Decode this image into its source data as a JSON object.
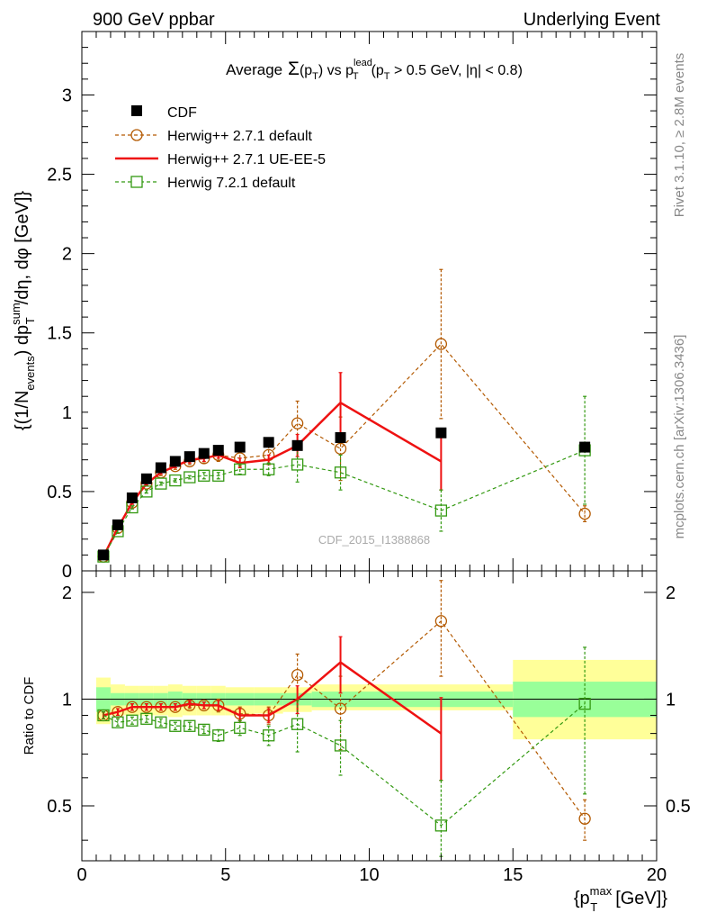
{
  "header": {
    "left": "900 GeV ppbar",
    "right": "Underlying Event"
  },
  "side_labels": {
    "rivet": "Rivet 3.1.10, ≥ 2.8M events",
    "mcplots": "mcplots.cern.ch [arXiv:1306.3436]"
  },
  "colors": {
    "cdf": "#000000",
    "herwigpp_default": "#b35900",
    "herwigpp_ueee5": "#ee1111",
    "herwig721": "#339911",
    "band_inner": "#99ff99",
    "band_outer": "#ffff99"
  },
  "chart_data": [
    {
      "type": "line",
      "title": "Average Σ(p_T) vs p_T^lead (p_T > 0.5 GeV, |η| < 0.8)",
      "xlabel": "{p_T^max [GeV]}",
      "ylabel": "{(1/N_events) dp_T^sum/dη, dφ [GeV]}",
      "xlim": [
        0,
        20
      ],
      "ylim": [
        0,
        3.4
      ],
      "yticks": [
        "0",
        "0.5",
        "1",
        "1.5",
        "2",
        "2.5",
        "3"
      ],
      "xticks": [
        "0",
        "5",
        "10",
        "15",
        "20"
      ],
      "watermark": "CDF_2015_I1388868",
      "legend_position": "top-left",
      "series": [
        {
          "name": "CDF",
          "style": "markers",
          "x": [
            0.75,
            1.25,
            1.75,
            2.25,
            2.75,
            3.25,
            3.75,
            4.25,
            4.75,
            5.5,
            6.5,
            7.5,
            9.0,
            12.5,
            17.5
          ],
          "y": [
            0.1,
            0.29,
            0.46,
            0.58,
            0.65,
            0.69,
            0.72,
            0.74,
            0.76,
            0.78,
            0.81,
            0.79,
            0.84,
            0.87,
            0.78
          ],
          "err": [
            0.01,
            0.01,
            0.01,
            0.01,
            0.01,
            0.01,
            0.01,
            0.01,
            0.01,
            0.01,
            0.02,
            0.02,
            0.03,
            0.04,
            0.06
          ]
        },
        {
          "name": "Herwig++ 2.7.1 default",
          "style": "circle-dashed",
          "x": [
            0.75,
            1.25,
            1.75,
            2.25,
            2.75,
            3.25,
            3.75,
            4.25,
            4.75,
            5.5,
            6.5,
            7.5,
            9.0,
            12.5,
            17.5
          ],
          "y": [
            0.09,
            0.27,
            0.43,
            0.55,
            0.62,
            0.66,
            0.69,
            0.71,
            0.73,
            0.71,
            0.73,
            0.93,
            0.77,
            1.43,
            0.36
          ],
          "err": [
            0.01,
            0.01,
            0.01,
            0.01,
            0.02,
            0.02,
            0.02,
            0.03,
            0.04,
            0.05,
            0.06,
            0.14,
            0.2,
            0.47,
            0.05
          ]
        },
        {
          "name": "Herwig++ 2.7.1 UE-EE-5",
          "style": "solid",
          "x": [
            0.75,
            1.25,
            1.75,
            2.25,
            2.75,
            3.25,
            3.75,
            4.25,
            4.75,
            5.5,
            6.5,
            7.5,
            9.0,
            12.5
          ],
          "y": [
            0.09,
            0.27,
            0.43,
            0.55,
            0.62,
            0.66,
            0.7,
            0.71,
            0.73,
            0.68,
            0.7,
            0.79,
            1.06,
            0.69
          ],
          "err": [
            0.01,
            0.01,
            0.01,
            0.01,
            0.01,
            0.01,
            0.02,
            0.02,
            0.02,
            0.03,
            0.03,
            0.07,
            0.19,
            0.18
          ]
        },
        {
          "name": "Herwig 7.2.1 default",
          "style": "square-dashed",
          "x": [
            0.75,
            1.25,
            1.75,
            2.25,
            2.75,
            3.25,
            3.75,
            4.25,
            4.75,
            5.5,
            6.5,
            7.5,
            9.0,
            12.5,
            17.5
          ],
          "y": [
            0.09,
            0.25,
            0.4,
            0.5,
            0.55,
            0.57,
            0.59,
            0.6,
            0.6,
            0.64,
            0.64,
            0.67,
            0.62,
            0.38,
            0.76
          ],
          "err": [
            0.01,
            0.01,
            0.01,
            0.01,
            0.01,
            0.01,
            0.01,
            0.02,
            0.02,
            0.03,
            0.04,
            0.11,
            0.11,
            0.13,
            0.34
          ]
        }
      ]
    },
    {
      "type": "line",
      "ylabel": "Ratio to CDF",
      "xlim": [
        0,
        20
      ],
      "ylim": [
        0.35,
        2.3
      ],
      "log_y": true,
      "yticks": [
        "0.5",
        "1",
        "2"
      ],
      "reference_line": 1,
      "bands": {
        "edges": [
          0.5,
          1.0,
          1.5,
          2.0,
          2.5,
          3.0,
          3.5,
          4.0,
          4.5,
          5.0,
          6.0,
          7.0,
          8.0,
          10.0,
          15.0,
          20.0
        ],
        "inner_lo": [
          0.92,
          0.96,
          0.96,
          0.96,
          0.96,
          0.95,
          0.96,
          0.96,
          0.96,
          0.96,
          0.96,
          0.96,
          0.95,
          0.95,
          0.89
        ],
        "inner_hi": [
          1.08,
          1.04,
          1.04,
          1.04,
          1.04,
          1.05,
          1.04,
          1.04,
          1.04,
          1.04,
          1.04,
          1.04,
          1.05,
          1.05,
          1.12
        ],
        "outer_lo": [
          0.85,
          0.9,
          0.9,
          0.9,
          0.9,
          0.89,
          0.9,
          0.9,
          0.9,
          0.9,
          0.91,
          0.92,
          0.93,
          0.93,
          0.77
        ],
        "outer_hi": [
          1.15,
          1.1,
          1.09,
          1.09,
          1.09,
          1.1,
          1.09,
          1.09,
          1.09,
          1.08,
          1.08,
          1.08,
          1.1,
          1.1,
          1.29
        ]
      },
      "series": [
        {
          "name": "Herwig++ 2.7.1 default",
          "x": [
            0.75,
            1.25,
            1.75,
            2.25,
            2.75,
            3.25,
            3.75,
            4.25,
            4.75,
            5.5,
            6.5,
            7.5,
            9.0,
            12.5,
            17.5
          ],
          "y": [
            0.9,
            0.92,
            0.95,
            0.95,
            0.95,
            0.95,
            0.96,
            0.96,
            0.96,
            0.91,
            0.9,
            1.17,
            0.94,
            1.66,
            0.46
          ],
          "err": [
            0.02,
            0.02,
            0.02,
            0.02,
            0.02,
            0.02,
            0.02,
            0.02,
            0.04,
            0.04,
            0.05,
            0.17,
            0.22,
            0.5,
            0.06
          ]
        },
        {
          "name": "Herwig++ 2.7.1 UE-EE-5",
          "x": [
            0.75,
            1.25,
            1.75,
            2.25,
            2.75,
            3.25,
            3.75,
            4.25,
            4.75,
            5.5,
            6.5,
            7.5,
            9.0,
            12.5
          ],
          "y": [
            0.9,
            0.92,
            0.95,
            0.95,
            0.95,
            0.95,
            0.97,
            0.96,
            0.96,
            0.9,
            0.9,
            1.0,
            1.27,
            0.8
          ],
          "err": [
            0.02,
            0.02,
            0.02,
            0.02,
            0.02,
            0.02,
            0.02,
            0.02,
            0.03,
            0.04,
            0.04,
            0.09,
            0.23,
            0.21
          ]
        },
        {
          "name": "Herwig 7.2.1 default",
          "x": [
            0.75,
            1.25,
            1.75,
            2.25,
            2.75,
            3.25,
            3.75,
            4.25,
            4.75,
            5.5,
            6.5,
            7.5,
            9.0,
            12.5,
            17.5
          ],
          "y": [
            0.9,
            0.86,
            0.87,
            0.88,
            0.86,
            0.84,
            0.84,
            0.82,
            0.79,
            0.83,
            0.79,
            0.85,
            0.74,
            0.44,
            0.97
          ],
          "err": [
            0.02,
            0.02,
            0.02,
            0.02,
            0.02,
            0.02,
            0.02,
            0.02,
            0.03,
            0.04,
            0.05,
            0.14,
            0.13,
            0.15,
            0.43
          ]
        }
      ]
    }
  ]
}
